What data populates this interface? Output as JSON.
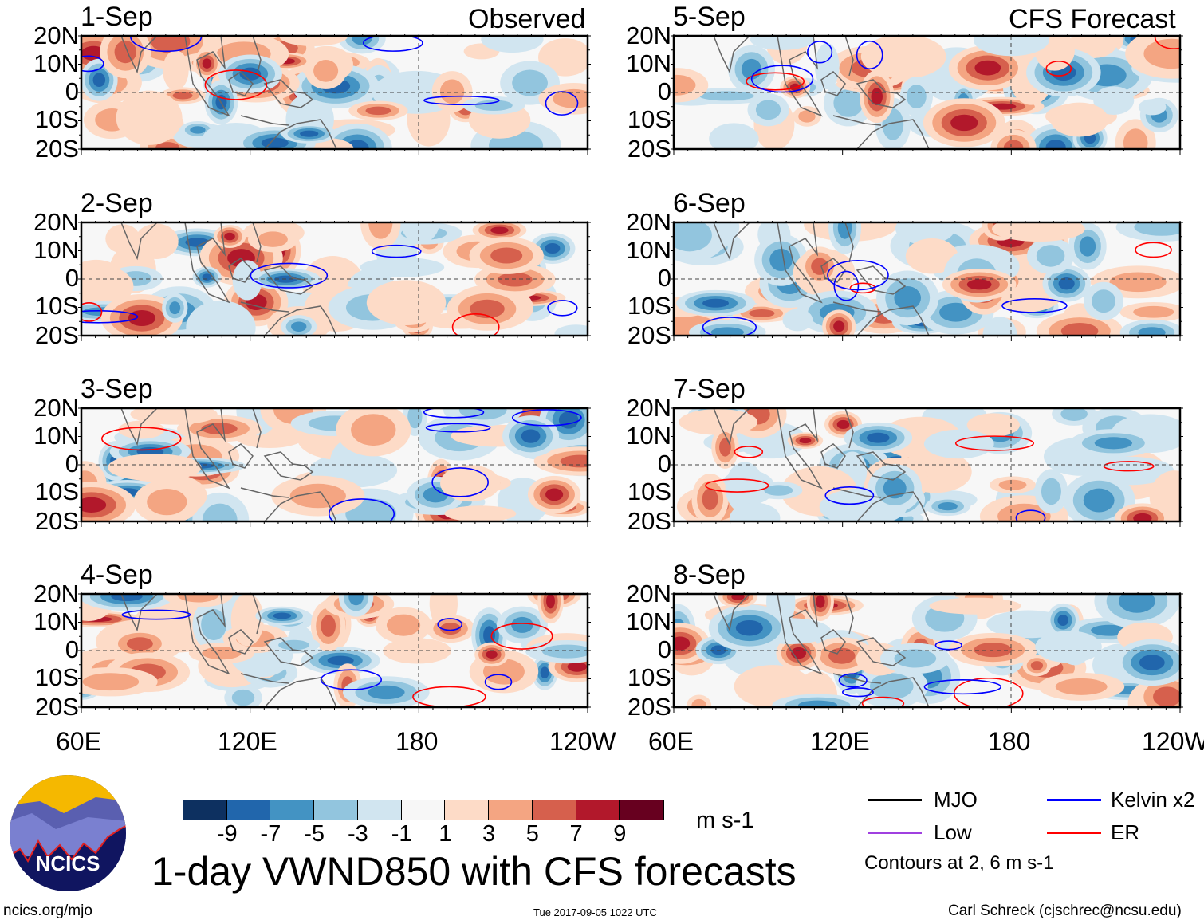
{
  "header": {
    "left": "Observed",
    "right": "CFS Forecast"
  },
  "panels": {
    "left": [
      "1-Sep",
      "2-Sep",
      "3-Sep",
      "4-Sep"
    ],
    "right": [
      "5-Sep",
      "6-Sep",
      "7-Sep",
      "8-Sep"
    ]
  },
  "lat_ticks": [
    "20N",
    "10N",
    "0",
    "10S",
    "20S"
  ],
  "lon_ticks": [
    "60E",
    "120E",
    "180",
    "120W"
  ],
  "colorbar": {
    "colors": [
      "#0d3060",
      "#2166ac",
      "#4393c3",
      "#92c5de",
      "#d1e5f0",
      "#f7f7f7",
      "#fddbc7",
      "#f4a582",
      "#d6604d",
      "#b2182b",
      "#67001f"
    ],
    "labels": [
      "-9",
      "-7",
      "-5",
      "-3",
      "-1",
      "1",
      "3",
      "5",
      "7",
      "9"
    ],
    "units": "m s-1"
  },
  "title": "1-day VWND850 with CFS forecasts",
  "legend": {
    "items": [
      {
        "label": "MJO",
        "color": "#000000"
      },
      {
        "label": "Kelvin x2",
        "color": "#0000ff"
      },
      {
        "label": "Low",
        "color": "#a040e0"
      },
      {
        "label": "ER",
        "color": "#ff0000"
      }
    ],
    "note": "Contours at 2, 6 m s-1"
  },
  "logo_text": "NCICS",
  "footer": {
    "left": "ncics.org/mjo",
    "center": "Tue 2017-09-05 1022 UTC",
    "right": "Carl Schreck (cjschrec@ncsu.edu)"
  }
}
